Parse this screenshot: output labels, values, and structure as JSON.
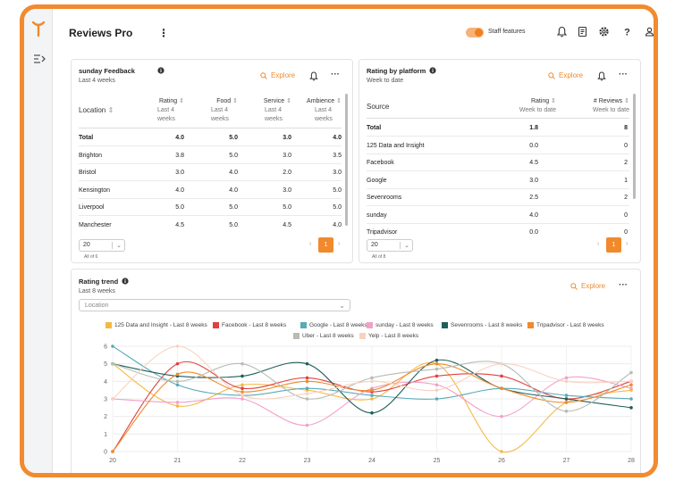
{
  "app": {
    "title": "Reviews Pro",
    "staff_features_label": "Staff features",
    "colors": {
      "accent": "#f08a2d",
      "frame": "#f28a2e"
    }
  },
  "sunday_feedback": {
    "title": "sunday Feedback",
    "subtitle": "Last 4 weeks",
    "explore_label": "Explore",
    "columns": [
      {
        "label": "Location",
        "sub": ""
      },
      {
        "label": "Rating",
        "sub": "Last 4 weeks"
      },
      {
        "label": "Food",
        "sub": "Last 4 weeks"
      },
      {
        "label": "Service",
        "sub": "Last 4 weeks"
      },
      {
        "label": "Ambience",
        "sub": "Last 4 weeks"
      }
    ],
    "rows": [
      {
        "location": "Total",
        "rating": "4.0",
        "food": "5.0",
        "service": "3.0",
        "ambience": "4.0"
      },
      {
        "location": "Brighton",
        "rating": "3.8",
        "food": "5.0",
        "service": "3.0",
        "ambience": "3.5"
      },
      {
        "location": "Bristol",
        "rating": "3.0",
        "food": "4.0",
        "service": "2.0",
        "ambience": "3.0"
      },
      {
        "location": "Kensington",
        "rating": "4.0",
        "food": "4.0",
        "service": "3.0",
        "ambience": "5.0"
      },
      {
        "location": "Liverpool",
        "rating": "5.0",
        "food": "5.0",
        "service": "5.0",
        "ambience": "5.0"
      },
      {
        "location": "Manchester",
        "rating": "4.5",
        "food": "5.0",
        "service": "4.5",
        "ambience": "4.0"
      }
    ],
    "page_size": "20",
    "all_of": "All of 6",
    "page": "1"
  },
  "rating_by_platform": {
    "title": "Rating by platform",
    "subtitle": "Week to date",
    "explore_label": "Explore",
    "columns": [
      {
        "label": "Source",
        "sub": ""
      },
      {
        "label": "Rating",
        "sub": "Week to date"
      },
      {
        "label": "# Reviews",
        "sub": "Week to date"
      }
    ],
    "rows": [
      {
        "source": "Total",
        "rating": "1.8",
        "reviews": "8"
      },
      {
        "source": "125 Data and Insight",
        "rating": "0.0",
        "reviews": "0"
      },
      {
        "source": "Facebook",
        "rating": "4.5",
        "reviews": "2"
      },
      {
        "source": "Google",
        "rating": "3.0",
        "reviews": "1"
      },
      {
        "source": "Sevenrooms",
        "rating": "2.5",
        "reviews": "2"
      },
      {
        "source": "sunday",
        "rating": "4.0",
        "reviews": "0"
      },
      {
        "source": "Tripadvisor",
        "rating": "0.0",
        "reviews": "0"
      }
    ],
    "page_size": "20",
    "all_of": "All of 8",
    "page": "1"
  },
  "rating_trend": {
    "title": "Rating trend",
    "subtitle": "Last 8 weeks",
    "explore_label": "Explore",
    "location_placeholder": "Location"
  },
  "chart_data": {
    "type": "line",
    "x": [
      20,
      21,
      22,
      23,
      24,
      25,
      26,
      27,
      28
    ],
    "ylim": [
      0,
      6
    ],
    "yticks": [
      "0",
      "1",
      "2",
      "3",
      "4",
      "5",
      "6"
    ],
    "xticks": [
      "20",
      "21",
      "22",
      "23",
      "24",
      "25",
      "26",
      "27",
      "28"
    ],
    "grid": true,
    "legend_position": "top",
    "series": [
      {
        "name": "125 Data and Insight - Last 8 weeks",
        "color": "#f5b942",
        "values": [
          5.0,
          2.6,
          3.8,
          3.5,
          3.0,
          5.0,
          0.0,
          2.8,
          3.5
        ]
      },
      {
        "name": "Facebook - Last 8 weeks",
        "color": "#e04040",
        "values": [
          0.0,
          5.0,
          3.6,
          4.2,
          3.4,
          4.3,
          4.3,
          3.0,
          4.0
        ]
      },
      {
        "name": "Google - Last 8 weeks",
        "color": "#5aaab8",
        "values": [
          6.0,
          3.8,
          3.2,
          3.6,
          3.2,
          3.0,
          3.6,
          3.2,
          3.0
        ]
      },
      {
        "name": "sunday - Last 8 weeks",
        "color": "#f2a0c8",
        "values": [
          3.0,
          2.8,
          3.0,
          1.5,
          3.6,
          3.8,
          2.0,
          4.2,
          3.6
        ]
      },
      {
        "name": "Sevenrooms - Last 8 weeks",
        "color": "#1f5f5a",
        "values": [
          5.0,
          4.3,
          4.3,
          5.0,
          2.2,
          5.2,
          3.6,
          3.0,
          2.5
        ]
      },
      {
        "name": "Tripadvisor - Last 8 weeks",
        "color": "#f08a2d",
        "values": [
          0.0,
          4.4,
          3.4,
          4.0,
          3.5,
          5.0,
          3.6,
          2.8,
          3.8
        ]
      },
      {
        "name": "Uber - Last 8 weeks",
        "color": "#b7bcb4",
        "values": [
          5.0,
          4.0,
          5.0,
          3.0,
          4.2,
          4.7,
          5.0,
          2.3,
          4.5
        ]
      },
      {
        "name": "Yelp - Last 8 weeks",
        "color": "#f7d2c0",
        "values": [
          3.0,
          6.0,
          3.2,
          3.3,
          4.0,
          3.5,
          5.0,
          4.0,
          4.0
        ]
      }
    ]
  }
}
